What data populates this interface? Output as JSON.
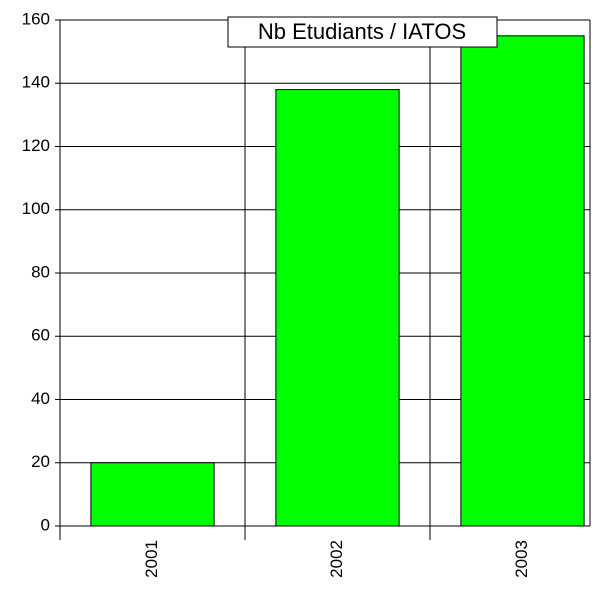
{
  "chart_data": {
    "type": "bar",
    "title": "Nb Etudiants / IATOS",
    "categories": [
      "2001",
      "2002",
      "2003"
    ],
    "values": [
      20,
      138,
      155
    ],
    "color": "#00ff00",
    "ylim": [
      0,
      160
    ],
    "yticks": [
      0,
      20,
      40,
      60,
      80,
      100,
      120,
      140,
      160
    ],
    "grid": true
  }
}
